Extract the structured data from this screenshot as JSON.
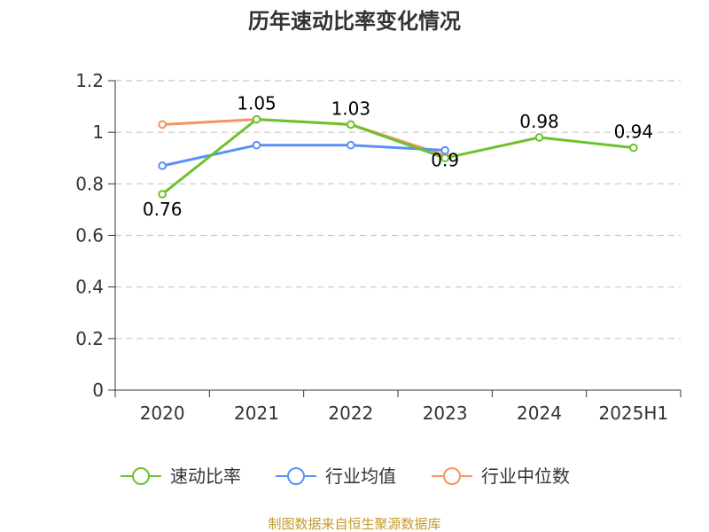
{
  "chart_data": {
    "type": "line",
    "title": "历年速动比率变化情况",
    "categories": [
      "2020",
      "2021",
      "2022",
      "2023",
      "2024",
      "2025H1"
    ],
    "ylim": [
      0,
      1.2
    ],
    "yticks": [
      "0",
      "0.2",
      "0.4",
      "0.6",
      "0.8",
      "1",
      "1.2"
    ],
    "grid": true,
    "legend_position": "bottom",
    "series": [
      {
        "name": "速动比率",
        "color": "#6cc22c",
        "values": [
          0.76,
          1.05,
          1.03,
          0.9,
          0.98,
          0.94
        ],
        "labels": [
          "0.76",
          "1.05",
          "1.03",
          "0.9",
          "0.98",
          "0.94"
        ]
      },
      {
        "name": "行业均值",
        "color": "#5b8ff9",
        "values": [
          0.87,
          0.95,
          0.95,
          0.93,
          null,
          null
        ]
      },
      {
        "name": "行业中位数",
        "color": "#f7945d",
        "values": [
          1.03,
          1.05,
          1.03,
          0.91,
          null,
          null
        ]
      }
    ]
  },
  "source_text": "制图数据来自恒生聚源数据库"
}
